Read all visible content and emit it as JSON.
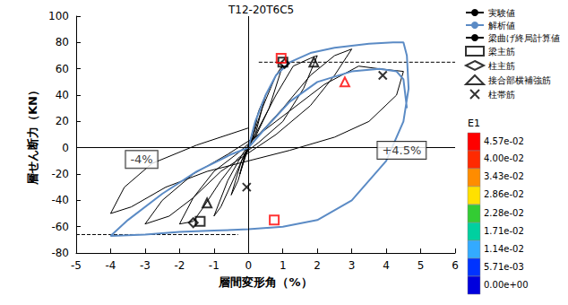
{
  "chart_data": {
    "type": "line",
    "title": "T12-20T6C5",
    "x_label": "層間変形角（%）",
    "y_label": "層せん断力（KN）",
    "xlim": [
      -5,
      6
    ],
    "xticks": [
      -5,
      -4,
      -3,
      -2,
      -1,
      0,
      1,
      2,
      3,
      4,
      5,
      6
    ],
    "ylim": [
      -80,
      100
    ],
    "yticks": [
      -80,
      -60,
      -40,
      -20,
      0,
      20,
      40,
      60,
      80,
      100
    ],
    "grid": false,
    "legend": "right",
    "series": [
      {
        "name": "実験値",
        "type": "line",
        "color": "#000000",
        "line_style": "solid",
        "x": [
          0,
          0.15,
          0.25,
          0.1,
          0,
          -0.15,
          -0.25,
          -0.1,
          0,
          0.3,
          0.5,
          0.2,
          0,
          -0.3,
          -0.5,
          -0.2,
          0,
          0.4,
          0.8,
          1.0,
          0.6,
          0.2,
          0,
          -0.4,
          -0.8,
          -1.0,
          -0.6,
          -0.2,
          0.2,
          0.8,
          1.3,
          1.8,
          2.0,
          1.6,
          1.0,
          0.3,
          -0.3,
          -0.8,
          -1.3,
          -1.6,
          -2.0,
          -1.6,
          -1.0,
          -0.3,
          0.3,
          1.0,
          1.8,
          2.5,
          3.0,
          2.5,
          1.8,
          0.8,
          0,
          -0.8,
          -1.6,
          -2.3,
          -3.0,
          -2.5,
          -1.6,
          -0.6,
          0.3,
          1.2,
          2.2,
          3.2,
          3.8,
          4.5,
          4.3,
          3.5,
          2.5,
          1.2,
          0,
          -1.2,
          -2.4,
          -3.4,
          -4.0,
          -3.6,
          -2.8,
          -1.5,
          0
        ],
        "values": [
          0,
          15,
          22,
          5,
          0,
          -12,
          -20,
          -5,
          0,
          28,
          40,
          10,
          2,
          -25,
          -36,
          -10,
          -2,
          30,
          55,
          63,
          30,
          8,
          2,
          -22,
          -45,
          -52,
          -25,
          -6,
          10,
          40,
          62,
          68,
          70,
          45,
          20,
          4,
          -8,
          -25,
          -45,
          -56,
          -58,
          -38,
          -18,
          -4,
          10,
          30,
          55,
          70,
          75,
          55,
          32,
          10,
          -4,
          -18,
          -38,
          -52,
          -58,
          -40,
          -20,
          -5,
          10,
          28,
          48,
          62,
          60,
          58,
          40,
          20,
          8,
          -2,
          -10,
          -18,
          -30,
          -45,
          -50,
          -30,
          -12,
          2,
          15
        ]
      },
      {
        "name": "解析値",
        "type": "line",
        "color": "#5b8bc5",
        "line_style": "solid",
        "x": [
          0,
          0.2,
          0.5,
          0.8,
          1.2,
          1.8,
          2.5,
          3.5,
          4.2,
          4.5,
          4.6,
          4.65,
          4.5,
          4.0,
          3.0,
          2.0,
          1.0,
          0,
          -1.0,
          -2.0,
          -3.0,
          -4.0,
          -3.5,
          -2.5,
          -1.5,
          -0.5,
          0,
          0.5,
          1.2,
          2.0,
          3.0,
          3.8,
          4.3,
          4.5,
          4.6
        ],
        "values": [
          0,
          20,
          40,
          55,
          65,
          72,
          76,
          79,
          80,
          80,
          70,
          45,
          20,
          -10,
          -40,
          -55,
          -60,
          -62,
          -63,
          -64,
          -66,
          -67,
          -55,
          -35,
          -18,
          -5,
          0,
          15,
          35,
          50,
          58,
          60,
          58,
          52,
          30
        ]
      },
      {
        "name": "梁曲げ終局計算値",
        "type": "line",
        "color": "#000000",
        "line_style": "dashed",
        "x": [
          0.3,
          6,
          0,
          -5,
          -0.3
        ],
        "values": [
          65,
          65,
          null,
          -66,
          -66
        ]
      },
      {
        "name": "梁主筋",
        "type": "scatter",
        "color": "#000000",
        "marker": "square",
        "x": [
          1.0,
          -1.4
        ],
        "values": [
          65,
          -56
        ]
      },
      {
        "name": "柱主筋",
        "type": "scatter",
        "color": "#000000",
        "marker": "diamond",
        "x": [
          1.05,
          -1.6
        ],
        "values": [
          64,
          -57
        ]
      },
      {
        "name": "接合部横補強筋",
        "type": "scatter",
        "color": "#000000",
        "marker": "triangle",
        "x": [
          1.9,
          -1.2
        ],
        "values": [
          65,
          -42
        ]
      },
      {
        "name": "柱帯筋",
        "type": "scatter",
        "color": "#000000",
        "marker": "x",
        "x": [
          3.9,
          -0.05
        ],
        "values": [
          55,
          -30
        ]
      },
      {
        "name": "梁主筋",
        "type": "scatter",
        "color": "#ff0000",
        "marker": "square",
        "x": [
          0.95,
          0.75
        ],
        "values": [
          68,
          -55
        ]
      },
      {
        "name": "接合部横補強筋",
        "type": "scatter",
        "color": "#ff0000",
        "marker": "triangle",
        "x": [
          2.8
        ],
        "values": [
          50
        ]
      }
    ],
    "annotations": [
      {
        "text": "-4%",
        "x": -3.1,
        "y": -9
      },
      {
        "text": "+4.5%",
        "x": 4.45,
        "y": -2
      }
    ],
    "colorbar": {
      "title": "E1",
      "range": [
        0,
        0.0457
      ],
      "ticks": [
        {
          "value": 0.0457,
          "label": "4.57e-02"
        },
        {
          "value": 0.04,
          "label": "4.00e-02"
        },
        {
          "value": 0.0343,
          "label": "3.43e-02"
        },
        {
          "value": 0.0286,
          "label": "2.86e-02"
        },
        {
          "value": 0.0228,
          "label": "2.28e-02"
        },
        {
          "value": 0.0171,
          "label": "1.71e-02"
        },
        {
          "value": 0.0114,
          "label": "1.14e-02"
        },
        {
          "value": 0.00571,
          "label": "5.71e-03"
        },
        {
          "value": 0,
          "label": "0.00e+00"
        }
      ]
    }
  }
}
